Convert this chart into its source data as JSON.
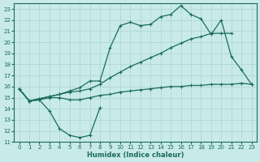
{
  "xlabel": "Humidex (Indice chaleur)",
  "xlim": [
    -0.5,
    23.5
  ],
  "ylim": [
    11,
    23.5
  ],
  "xticks": [
    0,
    1,
    2,
    3,
    4,
    5,
    6,
    7,
    8,
    9,
    10,
    11,
    12,
    13,
    14,
    15,
    16,
    17,
    18,
    19,
    20,
    21,
    22,
    23
  ],
  "yticks": [
    11,
    12,
    13,
    14,
    15,
    16,
    17,
    18,
    19,
    20,
    21,
    22,
    23
  ],
  "bg_color": "#c8eae8",
  "grid_color": "#b0d8d4",
  "line_color": "#1a6b60",
  "line1_x": [
    0,
    1,
    2,
    3,
    4,
    5,
    6,
    7,
    8
  ],
  "line1_y": [
    15.8,
    14.7,
    14.8,
    13.8,
    12.2,
    11.6,
    11.4,
    11.6,
    14.1
  ],
  "line2_x": [
    0,
    1,
    2,
    3,
    4,
    5,
    6,
    7,
    8,
    9,
    10,
    11,
    12,
    13,
    14,
    15,
    16,
    17,
    18,
    19,
    20,
    21,
    22,
    23
  ],
  "line2_y": [
    15.8,
    14.7,
    14.8,
    15.0,
    15.0,
    14.8,
    14.8,
    15.0,
    15.2,
    15.3,
    15.5,
    15.6,
    15.7,
    15.8,
    15.9,
    16.0,
    16.0,
    16.1,
    16.1,
    16.2,
    16.2,
    16.2,
    16.3,
    16.2
  ],
  "line3_x": [
    0,
    1,
    2,
    3,
    4,
    5,
    6,
    7,
    8,
    9,
    10,
    11,
    12,
    13,
    14,
    15,
    16,
    17,
    18,
    19,
    20,
    21
  ],
  "line3_y": [
    15.8,
    14.7,
    14.9,
    15.1,
    15.3,
    15.5,
    15.6,
    15.8,
    16.2,
    16.8,
    17.3,
    17.8,
    18.2,
    18.6,
    19.0,
    19.5,
    19.9,
    20.3,
    20.5,
    20.8,
    20.8,
    20.8
  ],
  "line4_x": [
    0,
    1,
    2,
    3,
    4,
    5,
    6,
    7,
    8,
    9,
    10,
    11,
    12,
    13,
    14,
    15,
    16,
    17,
    18,
    19,
    20,
    21,
    22,
    23
  ],
  "line4_y": [
    15.8,
    14.7,
    14.9,
    15.1,
    15.3,
    15.6,
    15.9,
    16.5,
    16.5,
    19.5,
    21.5,
    21.8,
    21.5,
    21.6,
    22.3,
    22.5,
    23.3,
    22.5,
    22.1,
    20.7,
    22.0,
    18.7,
    17.5,
    16.2
  ]
}
